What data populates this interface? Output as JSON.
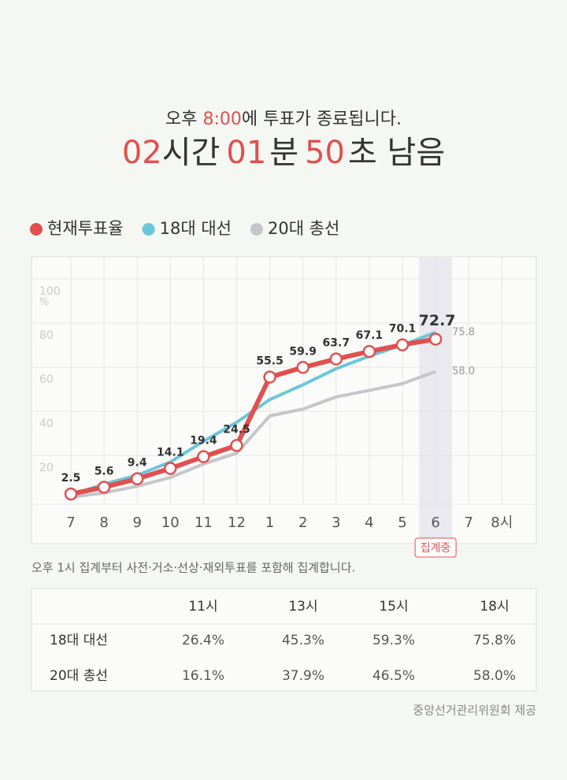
{
  "header": {
    "prefix": "오후 ",
    "time": "8:00",
    "suffix": "에 투표가 종료됩니다.",
    "hours": "02",
    "hours_unit": "시간",
    "minutes": "01",
    "minutes_unit": "분",
    "seconds": "50",
    "seconds_unit": "초 남음"
  },
  "chart_data": {
    "type": "line",
    "categories": [
      "7",
      "8",
      "9",
      "10",
      "11",
      "12",
      "1",
      "2",
      "3",
      "4",
      "5",
      "6",
      "7",
      "8시"
    ],
    "series": [
      {
        "name": "현재투표율",
        "color": "#e0504f",
        "values": [
          2.5,
          5.6,
          9.4,
          14.1,
          19.4,
          24.5,
          55.5,
          59.9,
          63.7,
          67.1,
          70.1,
          72.7,
          null,
          null
        ]
      },
      {
        "name": "18대 대선",
        "color": "#6cc6d9",
        "values": [
          2,
          7,
          11,
          17,
          26.4,
          35,
          45.3,
          52,
          59.3,
          65,
          70,
          75.8,
          null,
          null
        ],
        "value_labels": [
          null,
          null,
          null,
          null,
          null,
          null,
          null,
          null,
          null,
          null,
          null,
          "75.8",
          null,
          null
        ]
      },
      {
        "name": "20대 총선",
        "color": "#c4c6c9",
        "values": [
          1,
          3,
          6,
          10,
          16.1,
          21,
          37.9,
          41,
          46.5,
          49.5,
          52.5,
          58.0,
          null,
          null
        ],
        "value_labels": [
          null,
          null,
          null,
          null,
          null,
          null,
          null,
          null,
          null,
          null,
          null,
          "58.0",
          null,
          null
        ]
      }
    ],
    "ylim": [
      -20,
      110
    ],
    "yticks": [
      20,
      40,
      60,
      80,
      100
    ],
    "y_unit": "%",
    "grid": true,
    "highlight": {
      "category": 11,
      "label": "집계중"
    }
  },
  "note": "오후 1시 집계부터 사전·거소·선상·재외투표를 포함해 집계합니다.",
  "table": {
    "columns": [
      "11시",
      "13시",
      "15시",
      "18시"
    ],
    "rows": [
      [
        "18대 대선",
        "26.4%",
        "45.3%",
        "59.3%",
        "75.8%"
      ],
      [
        "20대 총선",
        "16.1%",
        "37.9%",
        "46.5%",
        "58.0%"
      ]
    ]
  },
  "source": "중앙선거관리위원회 제공"
}
